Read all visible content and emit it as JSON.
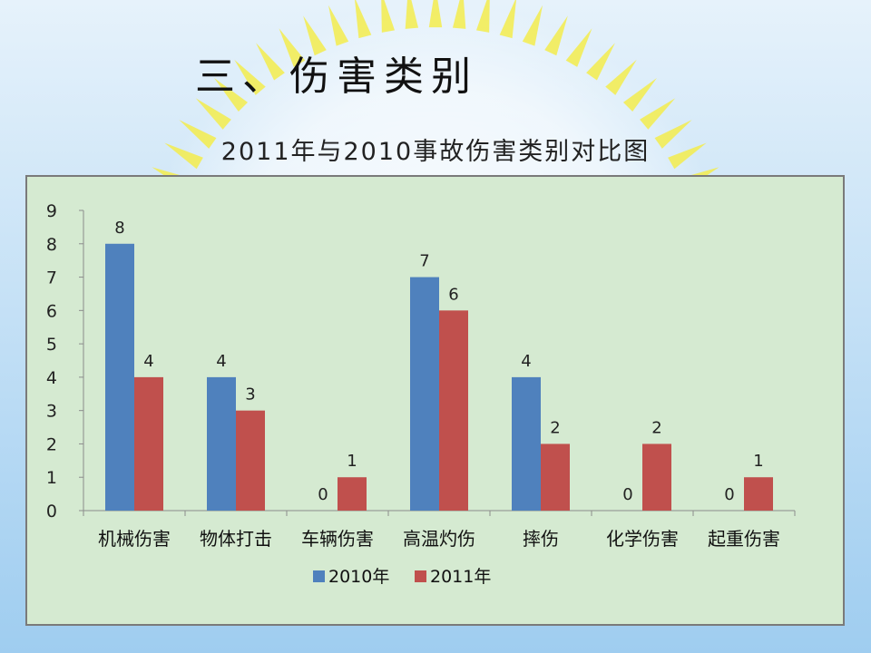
{
  "slide_title": "三、伤害类别",
  "colors": {
    "background_top": "#e6f2fb",
    "background_bottom": "#9fcdf0",
    "burst": "#f3ec4c",
    "plot_bg": "#d5ead1",
    "series_2010": "#4f81bd",
    "series_2011": "#c0504d"
  },
  "chart_data": {
    "type": "bar",
    "title": "2011年与2010事故伤害类别对比图",
    "xlabel": "",
    "ylabel": "",
    "ylim": [
      0,
      9
    ],
    "yticks": [
      0,
      1,
      2,
      3,
      4,
      5,
      6,
      7,
      8,
      9
    ],
    "grid": false,
    "legend_position": "bottom",
    "categories": [
      "机械伤害",
      "物体打击",
      "车辆伤害",
      "高温灼伤",
      "摔伤",
      "化学伤害",
      "起重伤害"
    ],
    "series": [
      {
        "name": "2010年",
        "color": "#4f81bd",
        "values": [
          8,
          4,
          0,
          7,
          4,
          0,
          0
        ]
      },
      {
        "name": "2011年",
        "color": "#c0504d",
        "values": [
          4,
          3,
          1,
          6,
          2,
          2,
          1
        ]
      }
    ]
  }
}
